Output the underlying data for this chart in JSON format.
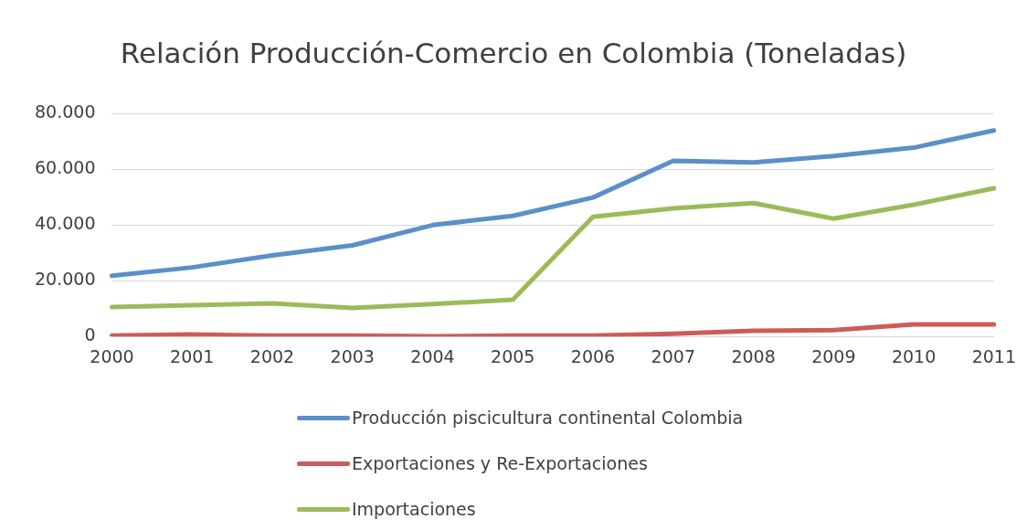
{
  "chart_data": {
    "type": "line",
    "title": "Relación Producción-Comercio en Colombia (Toneladas)",
    "categories": [
      "2000",
      "2001",
      "2002",
      "2003",
      "2004",
      "2005",
      "2006",
      "2007",
      "2008",
      "2009",
      "2010",
      "2011"
    ],
    "series": [
      {
        "name": "Producción piscicultura continental Colombia",
        "color": "#5b8fc9",
        "values": [
          21800,
          24800,
          29100,
          32700,
          40000,
          43300,
          49900,
          63100,
          62500,
          64800,
          67800,
          74000
        ]
      },
      {
        "name": "Exportaciones y Re-Exportaciones",
        "color": "#cd5c57",
        "values": [
          300,
          700,
          300,
          300,
          100,
          300,
          300,
          1000,
          2000,
          2300,
          4300,
          4300
        ]
      },
      {
        "name": "Importaciones",
        "color": "#9bbb59",
        "values": [
          10600,
          11200,
          11900,
          10200,
          11600,
          13200,
          43000,
          46000,
          47900,
          42300,
          47300,
          53200
        ]
      }
    ],
    "ylim": [
      0,
      80000
    ],
    "yticks": [
      {
        "value": 0,
        "label": "0"
      },
      {
        "value": 20000,
        "label": "20.000"
      },
      {
        "value": 40000,
        "label": "40.000"
      },
      {
        "value": 60000,
        "label": "60.000"
      },
      {
        "value": 80000,
        "label": "80.000"
      }
    ],
    "grid": "y",
    "legend": "bottom",
    "marker": "none",
    "line_style": "solid"
  }
}
